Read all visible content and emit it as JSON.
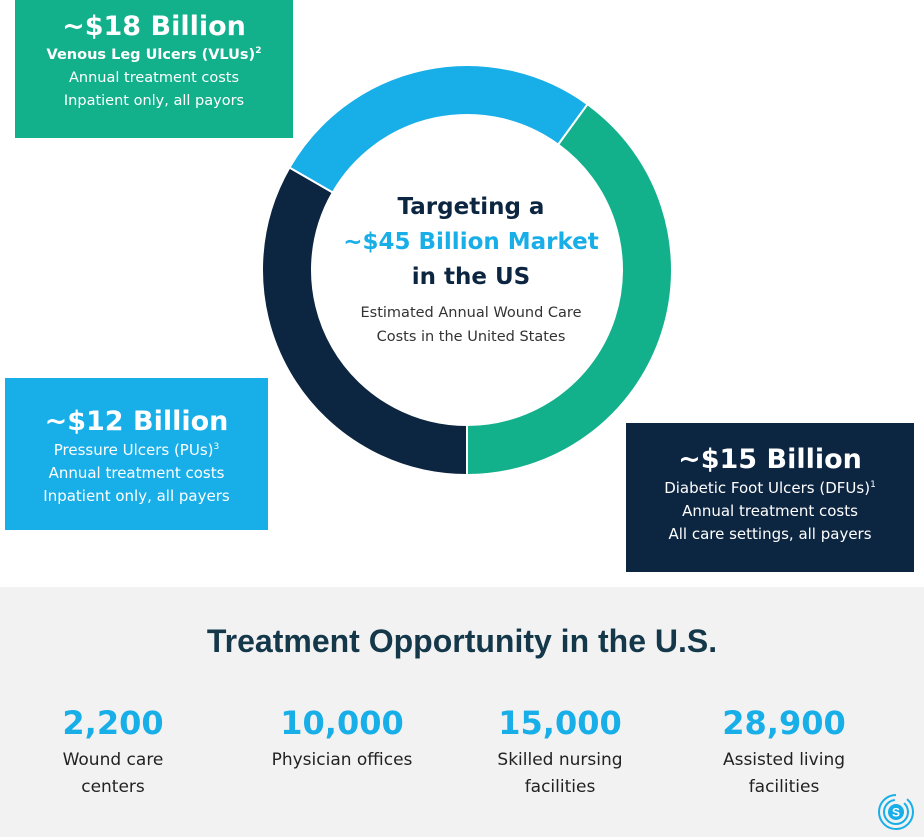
{
  "chart_data": {
    "type": "pie",
    "title": "",
    "center": {
      "line1": "Targeting a",
      "line2": "~$45 Billion Market",
      "line3": "in the US",
      "sub1": "Estimated Annual Wound Care",
      "sub2": "Costs in the United States"
    },
    "slices": [
      {
        "amount": "~$18 Billion",
        "value": 18,
        "color": "#13b08c",
        "label": "Venous Leg Ulcers (VLUs)",
        "ref": "2",
        "line2": "Annual treatment costs",
        "line3": "Inpatient only, all payors"
      },
      {
        "amount": "~$15 Billion",
        "value": 15,
        "color": "#0c2540",
        "label": "Diabetic Foot Ulcers (DFUs)",
        "ref": "1",
        "line2": "Annual treatment costs",
        "line3": "All care settings, all payers"
      },
      {
        "amount": "~$12 Billion",
        "value": 12,
        "color": "#18aee8",
        "label": "Pressure Ulcers (PUs)",
        "ref": "3",
        "line2": "Annual treatment costs",
        "line3": "Inpatient only, all payers"
      }
    ]
  },
  "opportunity": {
    "title": "Treatment Opportunity in the U.S.",
    "stats": [
      {
        "number": "2,200",
        "line1": "Wound care",
        "line2": "centers"
      },
      {
        "number": "10,000",
        "line1": "Physician offices",
        "line2": ""
      },
      {
        "number": "15,000",
        "line1": "Skilled nursing",
        "line2": "facilities"
      },
      {
        "number": "28,900",
        "line1": "Assisted living",
        "line2": "facilities"
      }
    ]
  },
  "logo": {
    "icon": "company-logo-icon",
    "color": "#18aee8"
  }
}
